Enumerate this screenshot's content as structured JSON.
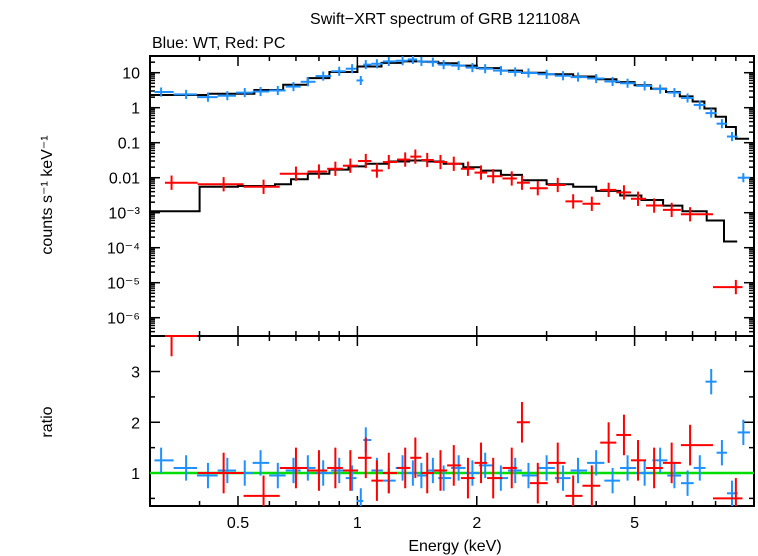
{
  "chart_data": {
    "type": "scatter",
    "title": "Swift−XRT spectrum of GRB 121108A",
    "subtitle": "Blue: WT, Red: PC",
    "xlabel": "Energy (keV)",
    "x_scale": "log",
    "xlim": [
      0.3,
      10
    ],
    "x_ticks": [
      "0.5",
      "1",
      "2",
      "5"
    ],
    "x_tick_values": [
      0.5,
      1,
      2,
      5
    ],
    "panels": [
      {
        "name": "spectrum",
        "ylabel": "counts s⁻¹ keV⁻¹",
        "y_scale": "log",
        "ylim": [
          3e-07,
          30
        ],
        "y_ticks": [
          "10",
          "1",
          "0.1",
          "0.01",
          "10⁻³",
          "10⁻⁴",
          "10⁻⁵",
          "10⁻⁶"
        ],
        "y_tick_values": [
          10,
          1,
          0.1,
          0.01,
          0.001,
          0.0001,
          1e-05,
          1e-06
        ],
        "series": [
          {
            "color": "#1e90ff",
            "points": [
              [
                0.32,
                2.8
              ],
              [
                0.37,
                2.4
              ],
              [
                0.42,
                2.0
              ],
              [
                0.47,
                2.2
              ],
              [
                0.52,
                2.7
              ],
              [
                0.57,
                2.9
              ],
              [
                0.63,
                3.1
              ],
              [
                0.69,
                4.0
              ],
              [
                0.75,
                5.5
              ],
              [
                0.82,
                8.0
              ],
              [
                0.9,
                11
              ],
              [
                0.97,
                13
              ],
              [
                1.02,
                6.0
              ],
              [
                1.05,
                17
              ],
              [
                1.12,
                18
              ],
              [
                1.2,
                21
              ],
              [
                1.3,
                22
              ],
              [
                1.38,
                24
              ],
              [
                1.45,
                21
              ],
              [
                1.55,
                20
              ],
              [
                1.65,
                17
              ],
              [
                1.8,
                16
              ],
              [
                1.95,
                14
              ],
              [
                2.1,
                13
              ],
              [
                2.3,
                11.5
              ],
              [
                2.5,
                10.5
              ],
              [
                2.7,
                9.8
              ],
              [
                3.0,
                9.0
              ],
              [
                3.3,
                8.2
              ],
              [
                3.6,
                7.5
              ],
              [
                4.0,
                6.8
              ],
              [
                4.4,
                5.6
              ],
              [
                4.8,
                5.0
              ],
              [
                5.3,
                4.2
              ],
              [
                5.8,
                3.4
              ],
              [
                6.3,
                2.7
              ],
              [
                6.8,
                1.9
              ],
              [
                7.3,
                1.2
              ],
              [
                7.8,
                0.7
              ],
              [
                8.3,
                0.35
              ],
              [
                8.8,
                0.15
              ],
              [
                9.4,
                0.01
              ]
            ]
          },
          {
            "color": "#ff0000",
            "points": [
              [
                0.34,
                0.0072
              ],
              [
                0.46,
                0.0065
              ],
              [
                0.58,
                0.0055
              ],
              [
                0.7,
                0.013
              ],
              [
                0.8,
                0.015
              ],
              [
                0.88,
                0.018
              ],
              [
                0.96,
                0.022
              ],
              [
                1.05,
                0.03
              ],
              [
                1.12,
                0.016
              ],
              [
                1.2,
                0.028
              ],
              [
                1.32,
                0.033
              ],
              [
                1.4,
                0.04
              ],
              [
                1.5,
                0.032
              ],
              [
                1.62,
                0.028
              ],
              [
                1.75,
                0.025
              ],
              [
                1.9,
                0.018
              ],
              [
                2.05,
                0.014
              ],
              [
                2.2,
                0.011
              ],
              [
                2.45,
                0.0095
              ],
              [
                2.6,
                0.0072
              ],
              [
                2.85,
                0.005
              ],
              [
                3.2,
                0.0062
              ],
              [
                3.5,
                0.0021
              ],
              [
                3.9,
                0.0018
              ],
              [
                4.3,
                0.0045
              ],
              [
                4.7,
                0.0038
              ],
              [
                5.1,
                0.0025
              ],
              [
                5.6,
                0.0016
              ],
              [
                6.2,
                0.0012
              ],
              [
                6.9,
                0.0009
              ],
              [
                9.0,
                7.5e-06
              ]
            ]
          }
        ],
        "models": [
          {
            "color": "#000000",
            "steps": [
              [
                0.3,
                2.3
              ],
              [
                0.42,
                2.5
              ],
              [
                0.55,
                3.2
              ],
              [
                0.65,
                4.5
              ],
              [
                0.75,
                7.0
              ],
              [
                0.85,
                10.5
              ],
              [
                1.0,
                15
              ],
              [
                1.15,
                19
              ],
              [
                1.3,
                21
              ],
              [
                1.45,
                20.5
              ],
              [
                1.6,
                18.5
              ],
              [
                1.8,
                16
              ],
              [
                2.0,
                13.5
              ],
              [
                2.3,
                11.5
              ],
              [
                2.6,
                10
              ],
              [
                3.0,
                9
              ],
              [
                3.5,
                7.8
              ],
              [
                4.0,
                6.5
              ],
              [
                4.5,
                5.4
              ],
              [
                5.0,
                4.4
              ],
              [
                5.5,
                3.5
              ],
              [
                6.0,
                2.8
              ],
              [
                6.5,
                2.1
              ],
              [
                7.0,
                1.5
              ],
              [
                7.5,
                0.95
              ],
              [
                8.0,
                0.55
              ],
              [
                8.5,
                0.28
              ],
              [
                9.0,
                0.13
              ]
            ]
          },
          {
            "color": "#000000",
            "steps": [
              [
                0.3,
                0.0011
              ],
              [
                0.4,
                0.0055
              ],
              [
                0.5,
                0.0058
              ],
              [
                0.62,
                0.0065
              ],
              [
                0.68,
                0.009
              ],
              [
                0.75,
                0.013
              ],
              [
                0.85,
                0.017
              ],
              [
                0.95,
                0.021
              ],
              [
                1.05,
                0.025
              ],
              [
                1.2,
                0.029
              ],
              [
                1.35,
                0.031
              ],
              [
                1.5,
                0.029
              ],
              [
                1.65,
                0.025
              ],
              [
                1.85,
                0.02
              ],
              [
                2.05,
                0.016
              ],
              [
                2.3,
                0.012
              ],
              [
                2.6,
                0.0085
              ],
              [
                3.0,
                0.0065
              ],
              [
                3.5,
                0.0055
              ],
              [
                4.0,
                0.0042
              ],
              [
                4.6,
                0.0031
              ],
              [
                5.2,
                0.0023
              ],
              [
                5.9,
                0.0016
              ],
              [
                6.6,
                0.0011
              ],
              [
                7.6,
                0.0006
              ],
              [
                8.4,
                0.00015
              ]
            ]
          }
        ]
      },
      {
        "name": "ratio",
        "ylabel": "ratio",
        "y_scale": "linear",
        "ylim": [
          0.35,
          3.7
        ],
        "y_ticks": [
          "1",
          "2",
          "3"
        ],
        "y_tick_values": [
          1,
          2,
          3
        ],
        "reference_line": {
          "value": 1,
          "color": "#00dd00"
        },
        "series": [
          {
            "color": "#1e90ff",
            "points": [
              [
                0.32,
                1.25
              ],
              [
                0.37,
                1.1
              ],
              [
                0.42,
                0.95
              ],
              [
                0.47,
                1.05
              ],
              [
                0.52,
                1.0
              ],
              [
                0.57,
                1.2
              ],
              [
                0.63,
                0.95
              ],
              [
                0.69,
                1.05
              ],
              [
                0.75,
                1.1
              ],
              [
                0.82,
                1.0
              ],
              [
                0.9,
                1.05
              ],
              [
                0.97,
                0.9
              ],
              [
                1.02,
                0.45
              ],
              [
                1.05,
                1.65
              ],
              [
                1.12,
                1.05
              ],
              [
                1.2,
                0.85
              ],
              [
                1.3,
                1.1
              ],
              [
                1.38,
                1.0
              ],
              [
                1.45,
                0.95
              ],
              [
                1.55,
                1.05
              ],
              [
                1.65,
                0.9
              ],
              [
                1.8,
                1.1
              ],
              [
                1.95,
                1.0
              ],
              [
                2.1,
                1.15
              ],
              [
                2.3,
                0.9
              ],
              [
                2.5,
                1.05
              ],
              [
                2.7,
                0.95
              ],
              [
                3.0,
                1.1
              ],
              [
                3.3,
                0.9
              ],
              [
                3.6,
                1.05
              ],
              [
                4.0,
                1.2
              ],
              [
                4.4,
                0.85
              ],
              [
                4.8,
                1.1
              ],
              [
                5.3,
                1.0
              ],
              [
                5.8,
                1.25
              ],
              [
                6.3,
                0.95
              ],
              [
                6.8,
                0.8
              ],
              [
                7.3,
                1.1
              ],
              [
                7.8,
                2.8
              ],
              [
                8.3,
                1.4
              ],
              [
                8.8,
                0.6
              ],
              [
                9.4,
                1.8
              ]
            ]
          },
          {
            "color": "#ff0000",
            "points": [
              [
                0.34,
                3.7
              ],
              [
                0.46,
                1.0
              ],
              [
                0.58,
                0.55
              ],
              [
                0.7,
                1.1
              ],
              [
                0.8,
                1.05
              ],
              [
                0.88,
                1.1
              ],
              [
                0.96,
                1.05
              ],
              [
                1.05,
                1.3
              ],
              [
                1.12,
                0.85
              ],
              [
                1.2,
                1.0
              ],
              [
                1.32,
                1.1
              ],
              [
                1.4,
                1.3
              ],
              [
                1.5,
                1.0
              ],
              [
                1.62,
                1.05
              ],
              [
                1.75,
                1.15
              ],
              [
                1.9,
                0.9
              ],
              [
                2.05,
                1.2
              ],
              [
                2.2,
                0.9
              ],
              [
                2.45,
                1.1
              ],
              [
                2.6,
                2.0
              ],
              [
                2.85,
                0.8
              ],
              [
                3.2,
                1.2
              ],
              [
                3.5,
                0.55
              ],
              [
                3.9,
                0.75
              ],
              [
                4.3,
                1.6
              ],
              [
                4.7,
                1.75
              ],
              [
                5.1,
                1.25
              ],
              [
                5.6,
                1.1
              ],
              [
                6.2,
                1.2
              ],
              [
                6.9,
                1.55
              ],
              [
                9.0,
                0.5
              ]
            ]
          }
        ]
      }
    ]
  }
}
